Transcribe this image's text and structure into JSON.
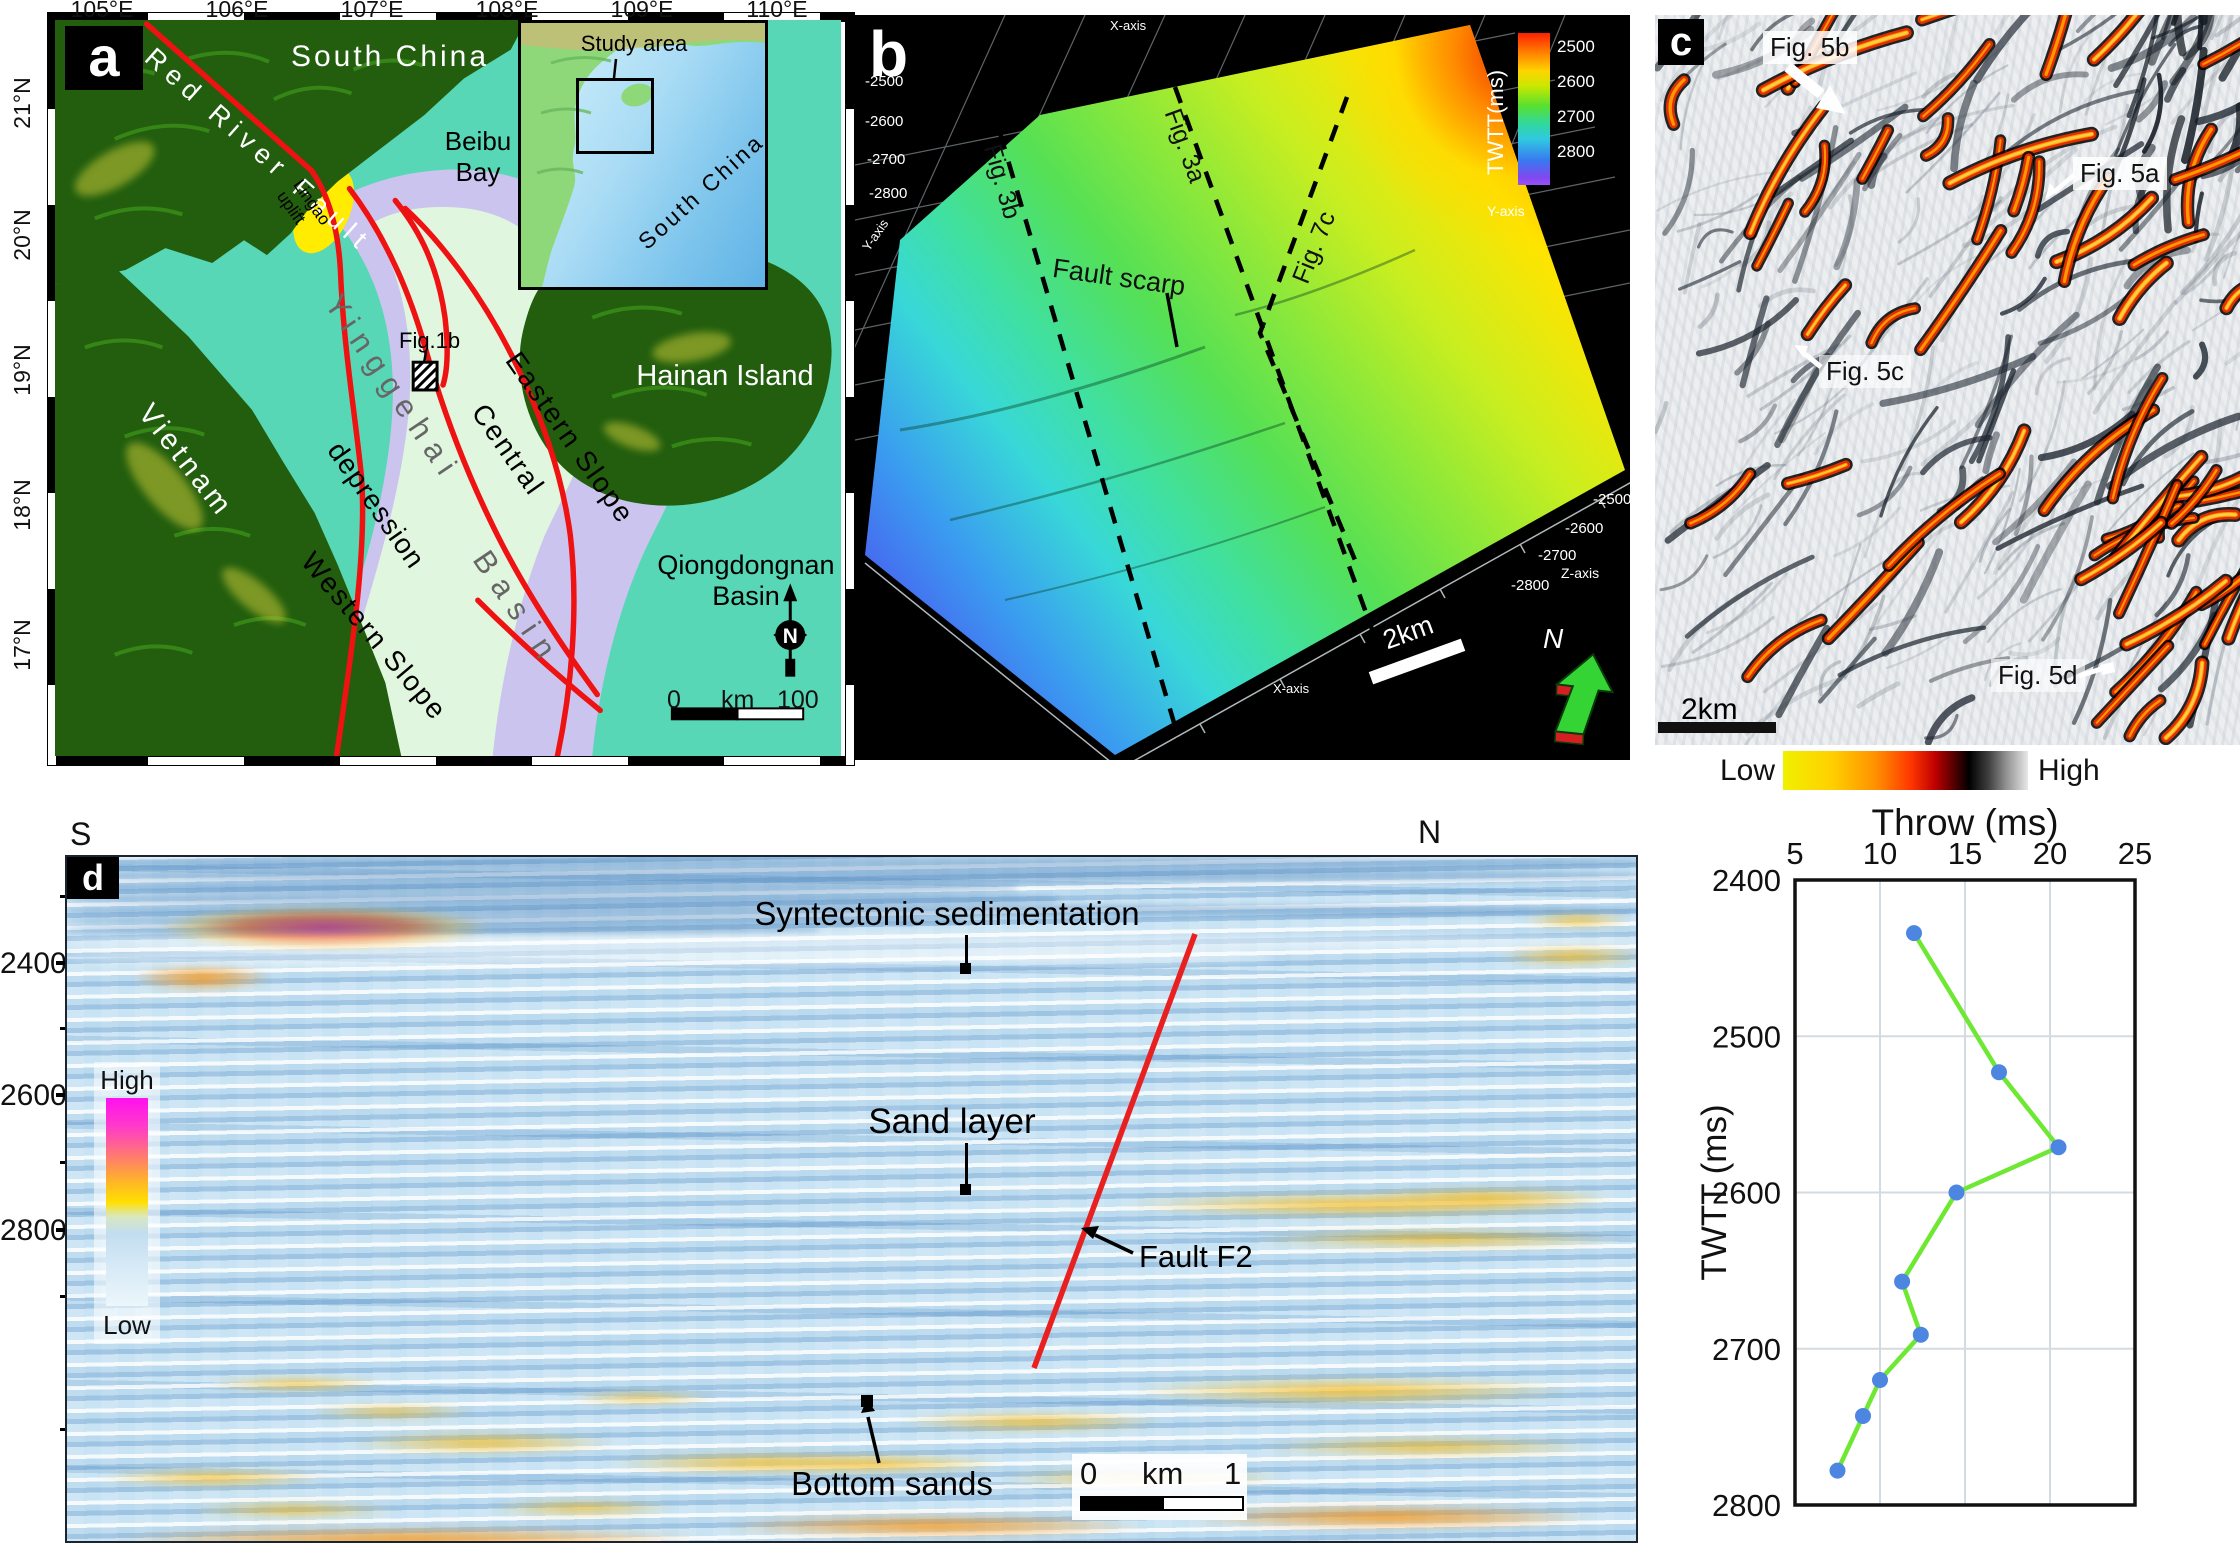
{
  "colors": {
    "fault_red": "#ee1212",
    "sea_teal": "#57d7b5",
    "slope_lavender": "#cbc4ee",
    "depression_green": "#e1f6de",
    "lingao_yellow": "#ffec00",
    "land_green": "#225e0e",
    "panel_b_background": "#000000",
    "chart_line_green": "#6ee832",
    "chart_marker_blue": "#4d86e0"
  },
  "panel_a": {
    "label": "a",
    "lon_labels": [
      "105°E",
      "106°E",
      "107°E",
      "108°E",
      "109°E",
      "110°E"
    ],
    "lat_labels": [
      "21°N",
      "20°N",
      "19°N",
      "18°N",
      "17°N"
    ],
    "labels": {
      "south_china": "South China",
      "beibu_bay": [
        "Beibu",
        "Bay"
      ],
      "red_river_fault": "Red River Fault",
      "lingao_uplift": [
        "Lingao",
        "uplift"
      ],
      "vietnam": "Vietnam",
      "yinggehai": "Yinggehai",
      "basin": "Basin",
      "central": "Central",
      "depression": "depression",
      "eastern_slope": "Eastern Slope",
      "western_slope": "Western Slope",
      "hainan_island": "Hainan Island",
      "qiongdongnan_basin": [
        "Qiongdongnan",
        "Basin"
      ],
      "fig_ref": "Fig.1b"
    },
    "compass": "N",
    "scalebar": {
      "start": "0",
      "unit": "km",
      "end": "100"
    },
    "inset": {
      "study_area": "Study area",
      "sea": "South China Sea"
    }
  },
  "panel_b": {
    "label": "b",
    "colorbar": {
      "title": "TWTT(ms)",
      "ticks": [
        "2500",
        "2600",
        "2700",
        "2800"
      ]
    },
    "left_axis": {
      "label": "Y-axis",
      "ticks": [
        "-2500",
        "-2600",
        "-2700",
        "-2800"
      ]
    },
    "right_axis": {
      "label": "Z-axis",
      "ticks": [
        "-2500",
        "-2600",
        "-2700",
        "-2800"
      ]
    },
    "x_axis_top": "X-axis",
    "x_axis_bottom": "X-axis",
    "y_axis_right": "Y-axis",
    "section_lines": [
      "Fig. 3b",
      "Fig. 3a",
      "Fig. 7c"
    ],
    "fault_scarp": "Fault scarp",
    "scalebar": "2km",
    "north": "N"
  },
  "panel_c": {
    "label": "c",
    "annotations": [
      "Fig. 5b",
      "Fig. 5a",
      "Fig. 5c",
      "Fig. 5d"
    ],
    "scalebar": "2km",
    "colorbar": {
      "low": "Low",
      "high": "High"
    }
  },
  "panel_d": {
    "label": "d",
    "orientation": {
      "south": "S",
      "north": "N"
    },
    "axis_ticks": [
      "2400",
      "2600",
      "2800"
    ],
    "colorbar": {
      "high": "High",
      "low": "Low"
    },
    "annotations": {
      "syntectonic": "Syntectonic sedimentation",
      "sand_layer": "Sand layer",
      "fault": "Fault F2",
      "bottom_sands": "Bottom sands"
    },
    "scalebar": {
      "start": "0",
      "unit": "km",
      "end": "1"
    }
  },
  "chart_data": {
    "type": "line",
    "title": "Throw (ms)",
    "xlabel": "Throw (ms)",
    "ylabel": "TWTT (ms)",
    "xlim": [
      5,
      25
    ],
    "ylim": [
      2400,
      2800
    ],
    "x_ticks": [
      5,
      10,
      15,
      20,
      25
    ],
    "y_ticks": [
      2400,
      2500,
      2600,
      2700,
      2800
    ],
    "x_axis_position": "top",
    "y_inverted": true,
    "grid": true,
    "series": [
      {
        "name": "fault-f2-throw-profile",
        "color": "#6ee832",
        "marker": "circle",
        "marker_color": "#4d86e0",
        "points": [
          [
            12,
            2434
          ],
          [
            17,
            2523
          ],
          [
            20.5,
            2571
          ],
          [
            14.5,
            2600
          ],
          [
            11.3,
            2657
          ],
          [
            12.4,
            2691
          ],
          [
            10,
            2720
          ],
          [
            9,
            2743
          ],
          [
            7.5,
            2778
          ]
        ]
      }
    ]
  }
}
